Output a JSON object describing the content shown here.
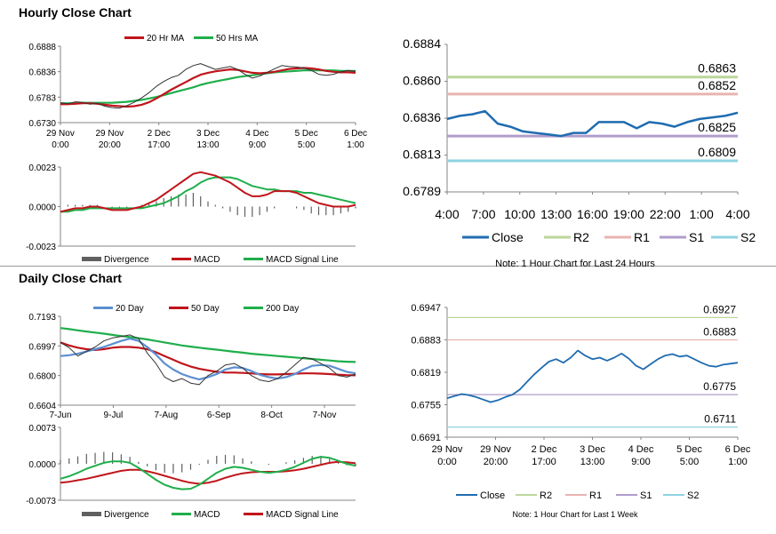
{
  "hourly_title": "Hourly Close Chart",
  "daily_title": "Daily Close Chart",
  "colors": {
    "close": "#1f6cb0",
    "ma_red": "#c0151b",
    "ma_green": "#1fae4b",
    "blue_ma": "#5b8fd0",
    "divergence": "#606060",
    "r2": "#bcd69a",
    "r1": "#e8b4b1",
    "s1": "#b09ccc",
    "s2": "#8fd3e2"
  },
  "chart_data": [
    {
      "id": "hourly_price",
      "type": "line",
      "title": "",
      "legend": [
        "20 Hr MA",
        "50 Hrs MA"
      ],
      "yticks": [
        "0.6888",
        "0.6836",
        "0.6783",
        "0.6730"
      ],
      "ylim": [
        0.673,
        0.6888
      ],
      "xticks": [
        [
          "29 Nov",
          "0:00"
        ],
        [
          "29 Nov",
          "20:00"
        ],
        [
          "2 Dec",
          "17:00"
        ],
        [
          "3 Dec",
          "13:00"
        ],
        [
          "4 Dec",
          "9:00"
        ],
        [
          "5 Dec",
          "5:00"
        ],
        [
          "6 Dec",
          "1:00"
        ]
      ],
      "series": [
        {
          "name": "Close",
          "values": [
            0.6771,
            0.6769,
            0.6773,
            0.6772,
            0.6768,
            0.677,
            0.6764,
            0.6761,
            0.676,
            0.6765,
            0.6772,
            0.6781,
            0.6792,
            0.6805,
            0.6815,
            0.6823,
            0.6828,
            0.684,
            0.6848,
            0.6852,
            0.6846,
            0.684,
            0.6843,
            0.6846,
            0.684,
            0.683,
            0.6822,
            0.6826,
            0.6834,
            0.6841,
            0.6848,
            0.6846,
            0.6845,
            0.6843,
            0.6838,
            0.683,
            0.6828,
            0.683,
            0.6835,
            0.6838,
            0.6836
          ]
        },
        {
          "name": "20 Hr MA",
          "values": [
            0.6768,
            0.6768,
            0.6769,
            0.677,
            0.677,
            0.6769,
            0.6767,
            0.6765,
            0.6764,
            0.6763,
            0.6764,
            0.6767,
            0.6772,
            0.678,
            0.6789,
            0.6798,
            0.6806,
            0.6814,
            0.6822,
            0.6829,
            0.6833,
            0.6836,
            0.6838,
            0.684,
            0.6839,
            0.6836,
            0.6833,
            0.6832,
            0.6833,
            0.6835,
            0.6838,
            0.6841,
            0.6842,
            0.6843,
            0.6842,
            0.684,
            0.6837,
            0.6835,
            0.6834,
            0.6834,
            0.6833
          ]
        },
        {
          "name": "50 Hrs MA",
          "values": [
            0.677,
            0.677,
            0.677,
            0.6771,
            0.6771,
            0.6771,
            0.6771,
            0.6771,
            0.6772,
            0.6773,
            0.6775,
            0.6777,
            0.678,
            0.6783,
            0.6787,
            0.6791,
            0.6795,
            0.6799,
            0.6803,
            0.6808,
            0.6812,
            0.6815,
            0.6818,
            0.6821,
            0.6824,
            0.6826,
            0.6828,
            0.683,
            0.6832,
            0.6834,
            0.6835,
            0.6836,
            0.6837,
            0.6838,
            0.6838,
            0.6838,
            0.6838,
            0.6838,
            0.6837,
            0.6837,
            0.6837
          ]
        }
      ]
    },
    {
      "id": "hourly_macd",
      "type": "line",
      "legend": [
        "Divergence",
        "MACD",
        "MACD Signal Line"
      ],
      "yticks": [
        "0.0023",
        "0.0000",
        "-0.0023"
      ],
      "ylim": [
        -0.0023,
        0.0023
      ],
      "series": [
        {
          "name": "MACD",
          "values": [
            -0.0003,
            -0.0002,
            -0.0001,
            -0.0001,
            0.0,
            0.0,
            -0.0001,
            -0.0002,
            -0.0002,
            -0.0002,
            -0.0001,
            0.0,
            0.0002,
            0.0004,
            0.0007,
            0.001,
            0.0013,
            0.0016,
            0.0019,
            0.002,
            0.0019,
            0.0018,
            0.0016,
            0.0014,
            0.0011,
            0.0008,
            0.0006,
            0.0006,
            0.0007,
            0.0009,
            0.0009,
            0.0009,
            0.0008,
            0.0006,
            0.0004,
            0.0002,
            0.0001,
            0.0,
            0.0,
            0.0,
            0.0001
          ]
        },
        {
          "name": "MACD Signal Line",
          "values": [
            -0.0003,
            -0.0003,
            -0.0002,
            -0.0002,
            -0.0001,
            -0.0001,
            -0.0001,
            -0.0001,
            -0.0001,
            -0.0001,
            -0.0001,
            -0.0001,
            0.0,
            0.0001,
            0.0002,
            0.0004,
            0.0006,
            0.0009,
            0.0011,
            0.0014,
            0.0016,
            0.0017,
            0.0017,
            0.0017,
            0.0016,
            0.0014,
            0.0012,
            0.0011,
            0.001,
            0.001,
            0.0009,
            0.0009,
            0.0009,
            0.0008,
            0.0008,
            0.0007,
            0.0006,
            0.0005,
            0.0004,
            0.0003,
            0.0002
          ]
        },
        {
          "name": "Divergence",
          "values": [
            0.0,
            0.0001,
            0.0001,
            0.0001,
            0.0001,
            0.0001,
            0.0,
            -0.0001,
            -0.0001,
            -0.0001,
            0.0,
            0.0001,
            0.0002,
            0.0003,
            0.0005,
            0.0006,
            0.0007,
            0.0007,
            0.0008,
            0.0006,
            0.0003,
            0.0001,
            -0.0001,
            -0.0003,
            -0.0005,
            -0.0006,
            -0.0006,
            -0.0005,
            -0.0003,
            -0.0001,
            0.0,
            0.0,
            -0.0001,
            -0.0002,
            -0.0004,
            -0.0005,
            -0.0005,
            -0.0005,
            -0.0004,
            -0.0003,
            -0.0001
          ]
        }
      ]
    },
    {
      "id": "hourly_24h",
      "type": "line",
      "yticks": [
        "0.6884",
        "0.6860",
        "0.6836",
        "0.6813",
        "0.6789"
      ],
      "ylim": [
        0.6789,
        0.6884
      ],
      "xticks": [
        "4:00",
        "7:00",
        "10:00",
        "13:00",
        "16:00",
        "19:00",
        "22:00",
        "1:00",
        "4:00"
      ],
      "levels": [
        {
          "name": "R2",
          "value": 0.6863,
          "label": "0.6863"
        },
        {
          "name": "R1",
          "value": 0.6852,
          "label": "0.6852"
        },
        {
          "name": "S1",
          "value": 0.6825,
          "label": "0.6825"
        },
        {
          "name": "S2",
          "value": 0.6809,
          "label": "0.6809"
        }
      ],
      "series": [
        {
          "name": "Close",
          "values": [
            0.6836,
            0.6838,
            0.6839,
            0.6841,
            0.6833,
            0.6831,
            0.6828,
            0.6827,
            0.6826,
            0.6825,
            0.6827,
            0.6827,
            0.6834,
            0.6834,
            0.6834,
            0.683,
            0.6834,
            0.6833,
            0.6831,
            0.6834,
            0.6836,
            0.6837,
            0.6838,
            0.684
          ]
        }
      ],
      "legend": [
        "Close",
        "R2",
        "R1",
        "S1",
        "S2"
      ],
      "note": "Note: 1 Hour Chart for Last 24 Hours"
    },
    {
      "id": "daily_price",
      "type": "line",
      "legend": [
        "20 Day",
        "50 Day",
        "200 Day"
      ],
      "yticks": [
        "0.7193",
        "0.6997",
        "0.6800",
        "0.6604"
      ],
      "ylim": [
        0.6604,
        0.7193
      ],
      "xticks": [
        "7-Jun",
        "9-Jul",
        "7-Aug",
        "6-Sep",
        "8-Oct",
        "7-Nov"
      ],
      "series": [
        {
          "name": "Close",
          "values": [
            0.702,
            0.6985,
            0.693,
            0.696,
            0.699,
            0.703,
            0.705,
            0.706,
            0.707,
            0.7045,
            0.695,
            0.688,
            0.679,
            0.676,
            0.678,
            0.675,
            0.674,
            0.68,
            0.683,
            0.687,
            0.688,
            0.685,
            0.68,
            0.677,
            0.676,
            0.678,
            0.682,
            0.687,
            0.692,
            0.691,
            0.688,
            0.685,
            0.68,
            0.679,
            0.681
          ]
        },
        {
          "name": "20 Day",
          "values": [
            0.693,
            0.6935,
            0.6945,
            0.696,
            0.6975,
            0.699,
            0.701,
            0.703,
            0.7045,
            0.703,
            0.699,
            0.694,
            0.688,
            0.684,
            0.681,
            0.679,
            0.6775,
            0.679,
            0.681,
            0.684,
            0.6855,
            0.685,
            0.683,
            0.6805,
            0.679,
            0.678,
            0.679,
            0.681,
            0.684,
            0.6865,
            0.687,
            0.6865,
            0.6845,
            0.6825,
            0.6815
          ]
        },
        {
          "name": "50 Day",
          "values": [
            0.702,
            0.7,
            0.6985,
            0.6975,
            0.697,
            0.6975,
            0.6985,
            0.699,
            0.699,
            0.6985,
            0.6975,
            0.6955,
            0.693,
            0.6905,
            0.688,
            0.686,
            0.6845,
            0.6835,
            0.6825,
            0.682,
            0.682,
            0.6818,
            0.6815,
            0.681,
            0.6808,
            0.6808,
            0.681,
            0.6812,
            0.6815,
            0.6815,
            0.6813,
            0.681,
            0.6806,
            0.6803,
            0.6802
          ]
        },
        {
          "name": "200 Day",
          "values": [
            0.7115,
            0.7108,
            0.71,
            0.7092,
            0.7085,
            0.7078,
            0.707,
            0.7062,
            0.7055,
            0.7048,
            0.704,
            0.703,
            0.702,
            0.701,
            0.7,
            0.6992,
            0.6985,
            0.6978,
            0.6972,
            0.6965,
            0.6958,
            0.6952,
            0.6945,
            0.694,
            0.6935,
            0.693,
            0.6925,
            0.692,
            0.6915,
            0.691,
            0.6905,
            0.69,
            0.6895,
            0.6892,
            0.689
          ]
        }
      ]
    },
    {
      "id": "daily_macd",
      "type": "line",
      "legend": [
        "Divergence",
        "MACD",
        "MACD Signal Line"
      ],
      "yticks": [
        "0.0073",
        "0.0000",
        "-0.0073"
      ],
      "ylim": [
        -0.0073,
        0.0073
      ],
      "series": [
        {
          "name": "MACD",
          "values": [
            -0.003,
            -0.0025,
            -0.0018,
            -0.001,
            -0.0004,
            0.0002,
            0.0005,
            0.0005,
            0.0002,
            -0.0008,
            -0.002,
            -0.0032,
            -0.0042,
            -0.0048,
            -0.0051,
            -0.005,
            -0.0042,
            -0.003,
            -0.0018,
            -0.001,
            -0.0006,
            -0.0008,
            -0.0012,
            -0.0016,
            -0.0018,
            -0.0016,
            -0.0012,
            -0.0006,
            0.0002,
            0.001,
            0.0014,
            0.0012,
            0.0006,
            0.0,
            -0.0004
          ]
        },
        {
          "name": "MACD Signal Line",
          "values": [
            -0.0038,
            -0.0036,
            -0.0033,
            -0.003,
            -0.0026,
            -0.0022,
            -0.0018,
            -0.0014,
            -0.0012,
            -0.0012,
            -0.0015,
            -0.0019,
            -0.0024,
            -0.0029,
            -0.0034,
            -0.0038,
            -0.004,
            -0.0038,
            -0.0034,
            -0.0028,
            -0.0023,
            -0.0019,
            -0.0017,
            -0.0016,
            -0.0016,
            -0.0016,
            -0.0015,
            -0.0013,
            -0.001,
            -0.0006,
            -0.0002,
            0.0002,
            0.0004,
            0.0003,
            0.0001
          ]
        },
        {
          "name": "Divergence",
          "values": [
            0.0008,
            0.0011,
            0.0015,
            0.002,
            0.0022,
            0.0024,
            0.0023,
            0.0019,
            0.0014,
            0.0004,
            -0.0005,
            -0.0013,
            -0.0018,
            -0.0019,
            -0.0017,
            -0.0012,
            -0.0002,
            0.0008,
            0.0016,
            0.0018,
            0.0017,
            0.0011,
            0.0005,
            0.0,
            -0.0002,
            0.0,
            0.0003,
            0.0007,
            0.0012,
            0.0016,
            0.0016,
            0.001,
            0.0002,
            -0.0003,
            -0.0005
          ]
        }
      ]
    },
    {
      "id": "daily_week",
      "type": "line",
      "yticks": [
        "0.6947",
        "0.6883",
        "0.6819",
        "0.6755",
        "0.6691"
      ],
      "ylim": [
        0.6691,
        0.6947
      ],
      "xticks": [
        [
          "29 Nov",
          "0:00"
        ],
        [
          "29 Nov",
          "20:00"
        ],
        [
          "2 Dec",
          "17:00"
        ],
        [
          "3 Dec",
          "13:00"
        ],
        [
          "4 Dec",
          "9:00"
        ],
        [
          "5 Dec",
          "5:00"
        ],
        [
          "6 Dec",
          "1:00"
        ]
      ],
      "levels": [
        {
          "name": "R2",
          "value": 0.6927,
          "label": "0.6927"
        },
        {
          "name": "R1",
          "value": 0.6883,
          "label": "0.6883"
        },
        {
          "name": "S1",
          "value": 0.6775,
          "label": "0.6775"
        },
        {
          "name": "S2",
          "value": 0.6711,
          "label": "0.6711"
        }
      ],
      "series": [
        {
          "name": "Close",
          "values": [
            0.6768,
            0.6772,
            0.6776,
            0.6774,
            0.677,
            0.6765,
            0.676,
            0.6764,
            0.677,
            0.6775,
            0.6785,
            0.68,
            0.6815,
            0.6828,
            0.684,
            0.6845,
            0.6838,
            0.6848,
            0.6862,
            0.6852,
            0.6845,
            0.6848,
            0.6842,
            0.6848,
            0.6856,
            0.6846,
            0.6832,
            0.6825,
            0.6835,
            0.6845,
            0.6852,
            0.6855,
            0.685,
            0.6852,
            0.6845,
            0.6838,
            0.6832,
            0.683,
            0.6834,
            0.6836,
            0.6838
          ]
        }
      ],
      "legend": [
        "Close",
        "R2",
        "R1",
        "S1",
        "S2"
      ],
      "note": "Note: 1 Hour Chart for Last 1 Week"
    }
  ]
}
